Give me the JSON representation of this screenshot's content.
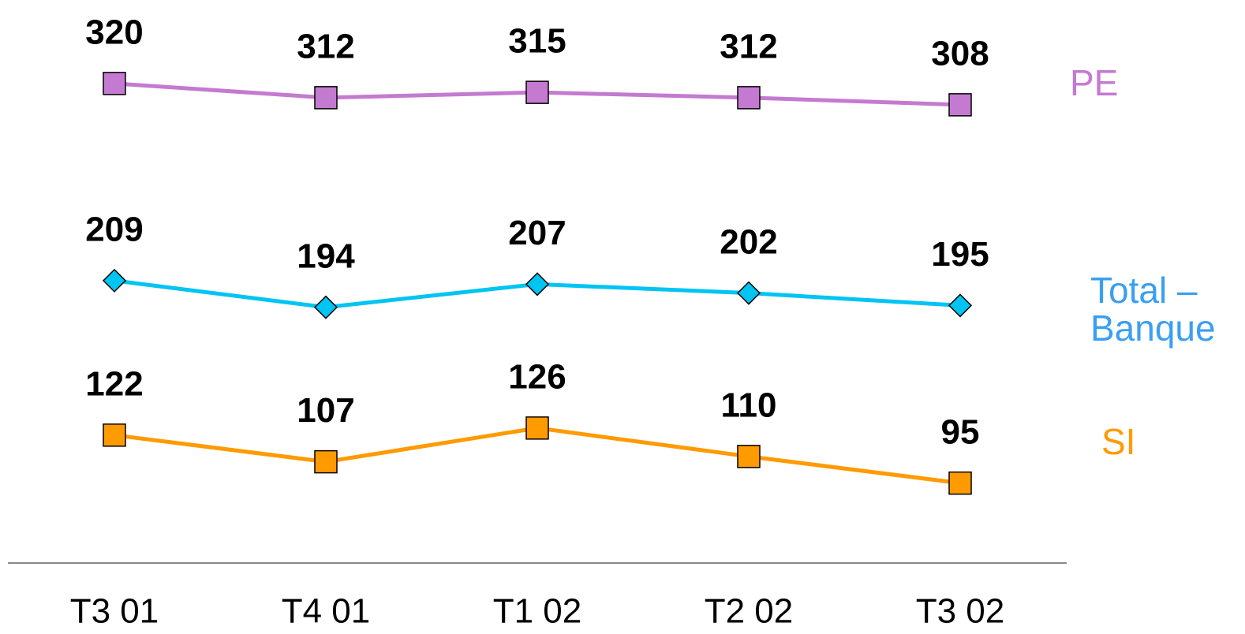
{
  "chart_data": {
    "type": "line",
    "categories": [
      "T3 01",
      "T4 01",
      "T1 02",
      "T2 02",
      "T3 02"
    ],
    "ylim": [
      50,
      367
    ],
    "series": [
      {
        "name": "PE",
        "color": "#c47ad0",
        "label_color": "#c47ad0",
        "marker": "square",
        "values": [
          320,
          312,
          315,
          312,
          308
        ]
      },
      {
        "name": "Total – Banque",
        "color": "#00c4f2",
        "label_color": "#3a9ff0",
        "marker": "diamond",
        "values": [
          209,
          194,
          207,
          202,
          195
        ]
      },
      {
        "name": "SI",
        "color": "#ff9a00",
        "label_color": "#ff9a00",
        "marker": "square",
        "values": [
          122,
          107,
          126,
          110,
          95
        ]
      }
    ]
  }
}
